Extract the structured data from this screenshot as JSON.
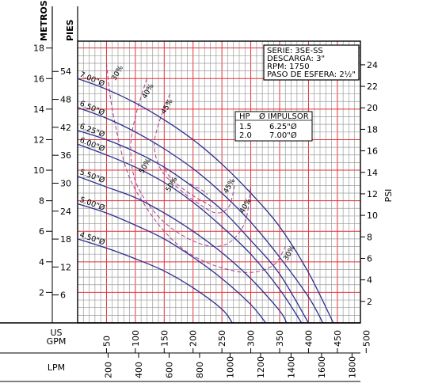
{
  "chart_data": {
    "type": "line",
    "axes": {
      "left_metros": {
        "title": "METROS",
        "ticks": [
          2,
          4,
          6,
          8,
          10,
          12,
          14,
          16,
          18
        ],
        "range": [
          0,
          18.45
        ]
      },
      "left_pies": {
        "title": "PIES",
        "ticks": [
          6,
          12,
          18,
          24,
          30,
          36,
          42,
          48,
          54
        ],
        "range": [
          0,
          60.5
        ]
      },
      "right_psi": {
        "title": "PSI",
        "ticks": [
          2,
          4,
          6,
          8,
          10,
          12,
          14,
          16,
          18,
          20,
          22,
          24
        ],
        "range": [
          0,
          26.2
        ]
      },
      "bottom_gpm": {
        "title_lines": [
          "US",
          "GPM"
        ],
        "ticks": [
          50,
          100,
          150,
          200,
          250,
          300,
          350,
          400,
          450,
          500
        ],
        "range": [
          0,
          490
        ]
      },
      "bottom_lpm": {
        "title": "LPM",
        "ticks": [
          200,
          400,
          600,
          800,
          1000,
          1200,
          1400,
          1600,
          1800
        ],
        "range": [
          0,
          1855
        ]
      }
    },
    "info_box": [
      "SERIE: 3SE-SS",
      "DESCARGA: 3\"",
      "RPM: 1750",
      "PASO DE ESFERA: 2½\""
    ],
    "impeller_table": {
      "headers": [
        "HP",
        "Ø IMPULSOR"
      ],
      "rows": [
        [
          "1.5",
          "6.25\"Ø"
        ],
        [
          "2.0",
          "7.00\"Ø"
        ]
      ]
    },
    "series": [
      {
        "name": "7.00\"Ø",
        "x": [
          0,
          50,
          100,
          150,
          200,
          250,
          300,
          350,
          400,
          443
        ],
        "y": [
          16.0,
          15.3,
          14.4,
          13.3,
          12.0,
          10.4,
          8.5,
          6.3,
          3.3,
          0.0
        ]
      },
      {
        "name": "6.50\"Ø",
        "x": [
          0,
          50,
          100,
          150,
          200,
          250,
          300,
          350,
          400,
          425
        ],
        "y": [
          14.1,
          13.4,
          12.5,
          11.4,
          10.1,
          8.5,
          6.6,
          4.3,
          1.7,
          0.0
        ]
      },
      {
        "name": "6.25\"Ø",
        "x": [
          0,
          50,
          100,
          150,
          200,
          250,
          300,
          350,
          400
        ],
        "y": [
          12.6,
          12.0,
          11.2,
          10.2,
          8.9,
          7.4,
          5.4,
          3.2,
          0.0
        ]
      },
      {
        "name": "6.00\"Ø",
        "x": [
          0,
          50,
          100,
          150,
          200,
          250,
          300,
          350,
          388
        ],
        "y": [
          11.7,
          11.0,
          10.2,
          9.2,
          7.9,
          6.3,
          4.5,
          2.2,
          0.0
        ]
      },
      {
        "name": "5.50\"Ø",
        "x": [
          0,
          50,
          100,
          150,
          200,
          250,
          300,
          350,
          362
        ],
        "y": [
          9.6,
          8.9,
          8.2,
          7.2,
          6.0,
          4.6,
          2.9,
          0.8,
          0.0
        ]
      },
      {
        "name": "5.00\"Ø",
        "x": [
          0,
          50,
          100,
          150,
          200,
          250,
          300,
          326
        ],
        "y": [
          7.8,
          7.2,
          6.4,
          5.5,
          4.3,
          2.9,
          1.2,
          0.0
        ]
      },
      {
        "name": "4.50\"Ø",
        "x": [
          0,
          50,
          100,
          150,
          200,
          250,
          268
        ],
        "y": [
          5.5,
          4.9,
          4.2,
          3.4,
          2.3,
          0.9,
          0.0
        ]
      }
    ],
    "efficiency_contours": [
      {
        "label": "30%",
        "x": [
          50,
          60,
          85,
          120,
          160,
          200,
          250,
          300,
          340,
          360
        ],
        "y": [
          17.0,
          14.0,
          10.0,
          7.5,
          5.6,
          4.4,
          3.6,
          3.3,
          3.8,
          5.0
        ]
      },
      {
        "label": "40%",
        "x": [
          120,
          100,
          92,
          100,
          130,
          170,
          220,
          260,
          290,
          300
        ],
        "y": [
          16.0,
          13.5,
          11.5,
          9.3,
          7.4,
          6.0,
          5.1,
          5.2,
          6.6,
          9.0
        ]
      },
      {
        "label": "45%",
        "x": [
          160,
          140,
          133,
          145,
          175,
          210,
          240,
          262,
          272
        ],
        "y": [
          15.0,
          13.0,
          11.5,
          10.0,
          8.8,
          7.8,
          7.2,
          7.6,
          9.0
        ]
      },
      {
        "label": "50%",
        "x": [
          150,
          155,
          175,
          205,
          225,
          235
        ],
        "y": [
          10.5,
          9.8,
          9.0,
          8.2,
          7.8,
          7.5
        ]
      },
      {
        "label": "50%",
        "x": [
          185,
          200,
          215,
          225
        ],
        "y": [
          9.3,
          9.0,
          8.7,
          8.4
        ]
      }
    ],
    "efficiency_label_positions": [
      {
        "text": "30%",
        "x": 72,
        "y": 16.3
      },
      {
        "text": "40%",
        "x": 125,
        "y": 15.1
      },
      {
        "text": "45%",
        "x": 158,
        "y": 14.1
      },
      {
        "text": "50%",
        "x": 120,
        "y": 10.2
      },
      {
        "text": "50%",
        "x": 166,
        "y": 9.0
      },
      {
        "text": "45%",
        "x": 266,
        "y": 8.9
      },
      {
        "text": "40%",
        "x": 294,
        "y": 7.6
      },
      {
        "text": "30%",
        "x": 370,
        "y": 4.5
      }
    ],
    "grid": true
  }
}
